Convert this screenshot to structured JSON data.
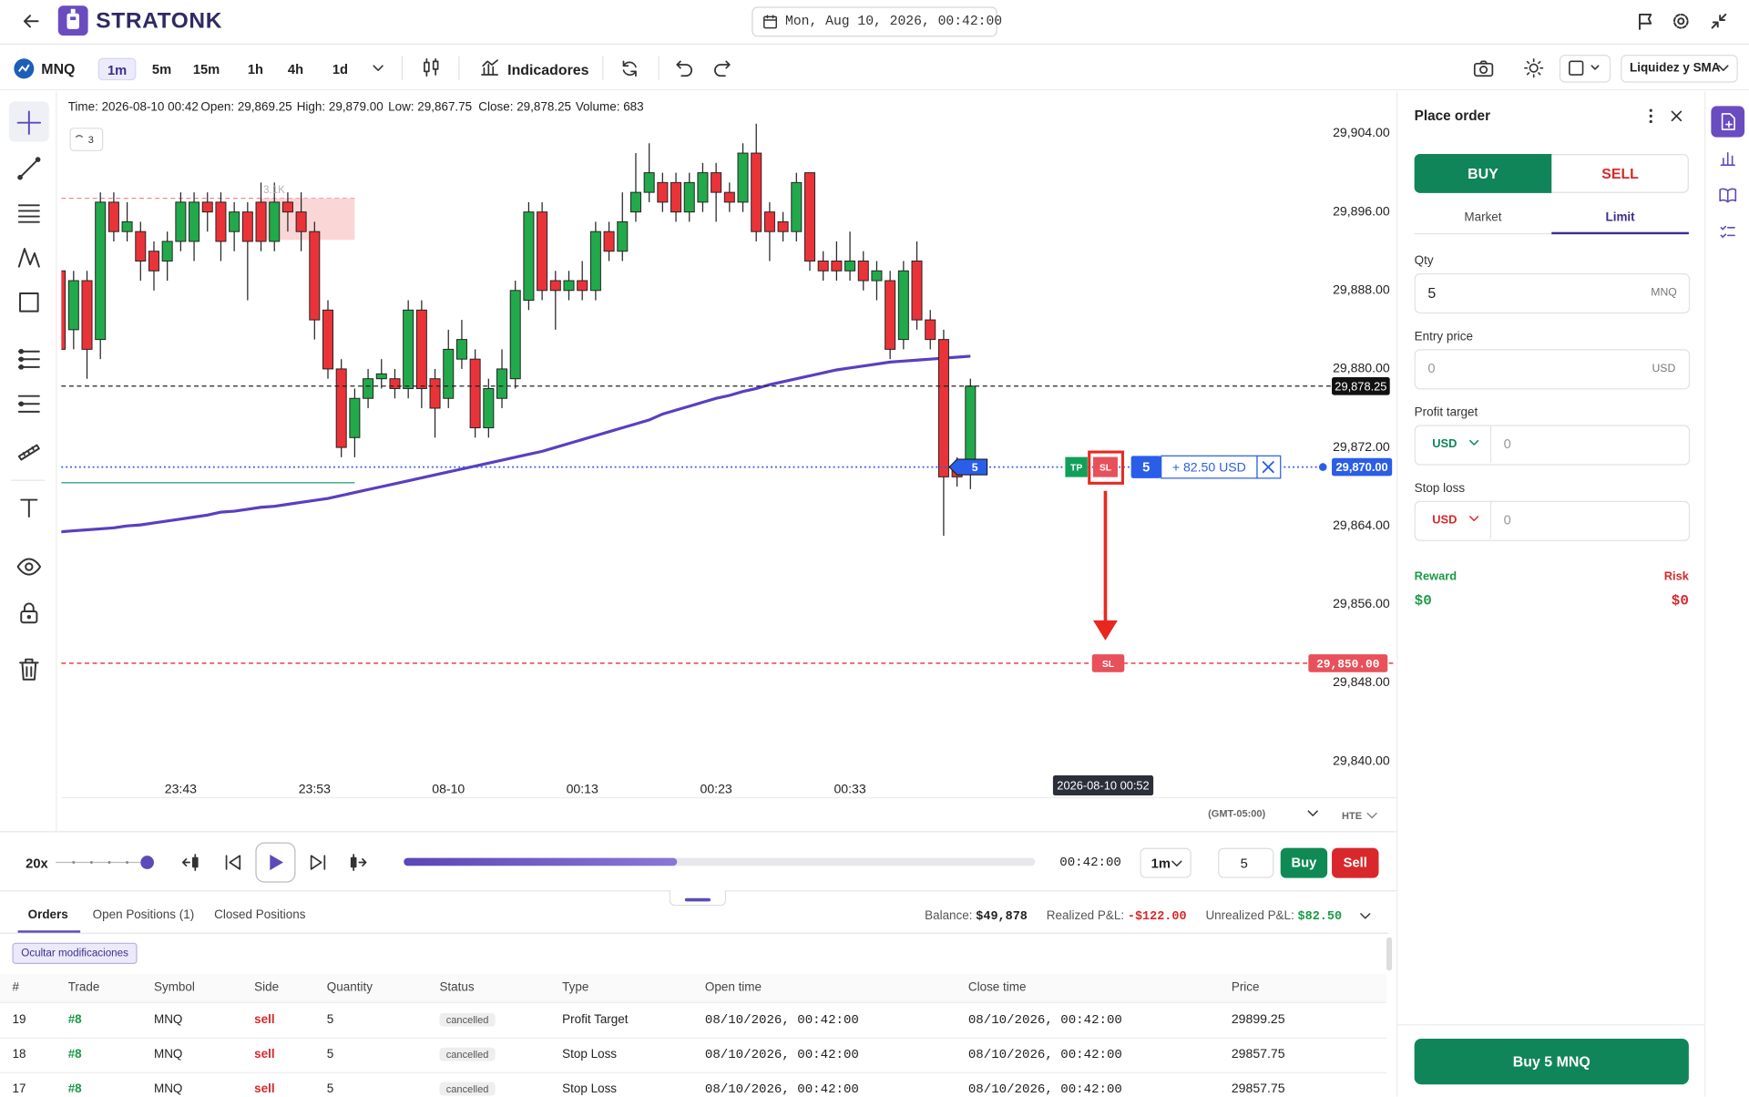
{
  "header": {
    "brand": "STRATONK",
    "datetime": "Mon, Aug 10, 2026, 00:42:00"
  },
  "toolbar": {
    "symbol": "MNQ",
    "timeframes": [
      "1m",
      "5m",
      "15m",
      "1h",
      "4h",
      "1d"
    ],
    "indicators": "Indicadores",
    "layout": "Liquidez y SMA"
  },
  "chart": {
    "legend": [
      {
        "label": "Time:",
        "value": "2026-08-10 00:42"
      },
      {
        "label": "Open:",
        "value": "29,869.25"
      },
      {
        "label": "High:",
        "value": "29,879.00"
      },
      {
        "label": "Low:",
        "value": "29,867.75"
      },
      {
        "label": "Close:",
        "value": "29,878.25"
      },
      {
        "label": "Volume:",
        "value": "683"
      }
    ],
    "indicator_count": "3",
    "up_color": "#22a94b",
    "down_color": "#ea3339",
    "sma_color": "#5a3fc0",
    "ylim": [
      29838,
      29907.6
    ],
    "yticks": [
      {
        "value": 29904,
        "label": "29,904.00"
      },
      {
        "value": 29896,
        "label": "29,896.00"
      },
      {
        "value": 29888,
        "label": "29,888.00"
      },
      {
        "value": 29880,
        "label": "29,880.00"
      },
      {
        "value": 29872,
        "label": "29,872.00"
      },
      {
        "value": 29864,
        "label": "29,864.00"
      },
      {
        "value": 29856,
        "label": "29,856.00"
      },
      {
        "value": 29848,
        "label": "29,848.00"
      },
      {
        "value": 29840,
        "label": "29,840.00"
      }
    ],
    "xticks": [
      "23:43",
      "23:53",
      "08-10",
      "00:13",
      "00:23",
      "00:33"
    ],
    "candles": [
      [
        29890,
        29891,
        29880,
        29882
      ],
      [
        29884,
        29890,
        29882,
        29889
      ],
      [
        29889,
        29890,
        29879,
        29882
      ],
      [
        29883,
        29898,
        29881,
        29897
      ],
      [
        29897,
        29898,
        29893,
        29894
      ],
      [
        29894,
        29897,
        29893,
        29895
      ],
      [
        29894,
        29895,
        29889,
        29891
      ],
      [
        29892,
        29893,
        29888,
        29890
      ],
      [
        29891,
        29894,
        29889,
        29893
      ],
      [
        29893,
        29898,
        29892,
        29897
      ],
      [
        29893,
        29898,
        29891,
        29897
      ],
      [
        29897,
        29898,
        29894,
        29896
      ],
      [
        29897,
        29898,
        29891,
        29893
      ],
      [
        29894,
        29897,
        29892,
        29896
      ],
      [
        29896,
        29897,
        29887,
        29893
      ],
      [
        29897,
        29899,
        29892,
        29893
      ],
      [
        29893,
        29899,
        29892,
        29897
      ],
      [
        29897,
        29898,
        29894,
        29896
      ],
      [
        29896,
        29898,
        29892,
        29894
      ],
      [
        29894,
        29895,
        29883,
        29885
      ],
      [
        29886,
        29887,
        29879,
        29880
      ],
      [
        29880,
        29881,
        29871,
        29872
      ],
      [
        29873,
        29878,
        29871,
        29877
      ],
      [
        29877,
        29880,
        29876,
        29879
      ],
      [
        29879,
        29881,
        29878,
        29879.5
      ],
      [
        29879,
        29880,
        29877,
        29878
      ],
      [
        29878,
        29887,
        29877,
        29886
      ],
      [
        29886,
        29887,
        29876,
        29878
      ],
      [
        29879,
        29880,
        29873,
        29876
      ],
      [
        29877,
        29884,
        29876,
        29882
      ],
      [
        29881,
        29885,
        29880,
        29883
      ],
      [
        29881,
        29882,
        29873,
        29874
      ],
      [
        29874,
        29879,
        29873,
        29878
      ],
      [
        29877,
        29882,
        29876,
        29880
      ],
      [
        29879,
        29889,
        29878,
        29888
      ],
      [
        29887,
        29897,
        29886,
        29896
      ],
      [
        29896,
        29897,
        29887,
        29888
      ],
      [
        29889,
        29890,
        29884,
        29888
      ],
      [
        29888,
        29890,
        29887,
        29889
      ],
      [
        29889,
        29891,
        29887,
        29888
      ],
      [
        29888,
        29895,
        29887,
        29894
      ],
      [
        29894,
        29895,
        29891,
        29892
      ],
      [
        29892,
        29898,
        29891,
        29895
      ],
      [
        29896,
        29902,
        29895,
        29898
      ],
      [
        29898,
        29903,
        29897,
        29900
      ],
      [
        29899,
        29900,
        29896,
        29897
      ],
      [
        29899,
        29900,
        29895,
        29896
      ],
      [
        29896,
        29900,
        29895,
        29899
      ],
      [
        29897,
        29901,
        29896,
        29900
      ],
      [
        29900,
        29901,
        29895,
        29898
      ],
      [
        29898,
        29899,
        29896,
        29897
      ],
      [
        29897,
        29903,
        29896,
        29902
      ],
      [
        29902,
        29905,
        29893,
        29894
      ],
      [
        29896,
        29897,
        29891,
        29894
      ],
      [
        29895,
        29896,
        29893,
        29894
      ],
      [
        29894,
        29900,
        29893,
        29899
      ],
      [
        29900,
        29900,
        29890,
        29891
      ],
      [
        29891,
        29892,
        29889,
        29890
      ],
      [
        29891,
        29893,
        29889,
        29890
      ],
      [
        29890,
        29894,
        29889,
        29891
      ],
      [
        29891,
        29892,
        29888,
        29889
      ],
      [
        29889,
        29891,
        29887,
        29890
      ],
      [
        29889,
        29890,
        29881,
        29882
      ],
      [
        29883,
        29891,
        29882,
        29890
      ],
      [
        29891,
        29893,
        29884,
        29885
      ],
      [
        29885,
        29886,
        29882,
        29883
      ],
      [
        29883,
        29884,
        29863,
        29869
      ],
      [
        29870,
        29871,
        29868,
        29869
      ],
      [
        29869.25,
        29879,
        29867.75,
        29878.25
      ]
    ],
    "sma": [
      29863.4,
      29863.5,
      29863.6,
      29863.7,
      29863.8,
      29864.0,
      29864.1,
      29864.3,
      29864.5,
      29864.7,
      29864.9,
      29865.1,
      29865.4,
      29865.5,
      29865.7,
      29865.9,
      29866.0,
      29866.2,
      29866.4,
      29866.6,
      29866.8,
      29867.1,
      29867.4,
      29867.7,
      29868.0,
      29868.3,
      29868.6,
      29868.9,
      29869.2,
      29869.5,
      29869.8,
      29870.1,
      29870.4,
      29870.7,
      29871.0,
      29871.3,
      29871.6,
      29872.0,
      29872.4,
      29872.8,
      29873.2,
      29873.6,
      29874.0,
      29874.4,
      29874.8,
      29875.4,
      29875.8,
      29876.2,
      29876.6,
      29877.0,
      29877.3,
      29877.7,
      29878.0,
      29878.4,
      29878.7,
      29879.0,
      29879.3,
      29879.6,
      29879.9,
      29880.1,
      29880.3,
      29880.5,
      29880.7,
      29880.8,
      29880.9,
      29881.0,
      29881.1,
      29881.2,
      29881.3
    ],
    "zone": {
      "label": "3.1K",
      "top": 29897.4,
      "bottom": 29895.2
    },
    "liquidity_line": 29868.4,
    "last_price": {
      "value": 29878.25,
      "label": "29,878.25"
    },
    "order_line": {
      "value": 29870,
      "label": "29,870.00",
      "tp": "TP",
      "sl": "SL",
      "quantity": "5",
      "pnl": "+ 82.50 USD",
      "marker": "5"
    },
    "stop_loss": {
      "value": 29850,
      "label": "29,850.00",
      "tag": "SL"
    },
    "crosshair_time": "2026-08-10 00:52",
    "timezone": "(GMT-05:00)",
    "session": "HTE"
  },
  "playback": {
    "speed": "20x",
    "time": "00:42:00",
    "interval": "1m",
    "quantity": "5",
    "buy": "Buy",
    "sell": "Sell"
  },
  "bottom": {
    "tabs": [
      "Orders",
      "Open Positions (1)",
      "Closed Positions"
    ],
    "balance": {
      "label": "Balance:",
      "value": "$49,878"
    },
    "realized": {
      "label": "Realized P&L:",
      "value": "-$122.00"
    },
    "unrealized": {
      "label": "Unrealized P&L:",
      "value": "$82.50"
    },
    "filter": "Ocultar modificaciones"
  },
  "table": {
    "headers": [
      "#",
      "Trade",
      "Symbol",
      "Side",
      "Quantity",
      "Status",
      "Type",
      "Open time",
      "Close time",
      "Price"
    ],
    "rows": [
      [
        "19",
        "#8",
        "MNQ",
        "sell",
        "5",
        "cancelled",
        "Profit Target",
        "08/10/2026, 00:42:00",
        "08/10/2026, 00:42:00",
        "29899.25"
      ],
      [
        "18",
        "#8",
        "MNQ",
        "sell",
        "5",
        "cancelled",
        "Stop Loss",
        "08/10/2026, 00:42:00",
        "08/10/2026, 00:42:00",
        "29857.75"
      ],
      [
        "17",
        "#8",
        "MNQ",
        "sell",
        "5",
        "cancelled",
        "Stop Loss",
        "08/10/2026, 00:42:00",
        "08/10/2026, 00:42:00",
        "29857.75"
      ]
    ]
  },
  "order_panel": {
    "title": "Place order",
    "buy": "BUY",
    "sell": "SELL",
    "market": "Market",
    "limit": "Limit",
    "qty_label": "Qty",
    "qty": "5",
    "qty_unit": "MNQ",
    "entry_label": "Entry price",
    "entry": "0",
    "entry_unit": "USD",
    "profit_label": "Profit target",
    "profit_unit": "USD",
    "profit": "0",
    "stop_label": "Stop loss",
    "stop_unit": "USD",
    "stop": "0",
    "reward_label": "Reward",
    "risk_label": "Risk",
    "reward": "$0",
    "risk": "$0",
    "submit": "Buy 5 MNQ"
  }
}
